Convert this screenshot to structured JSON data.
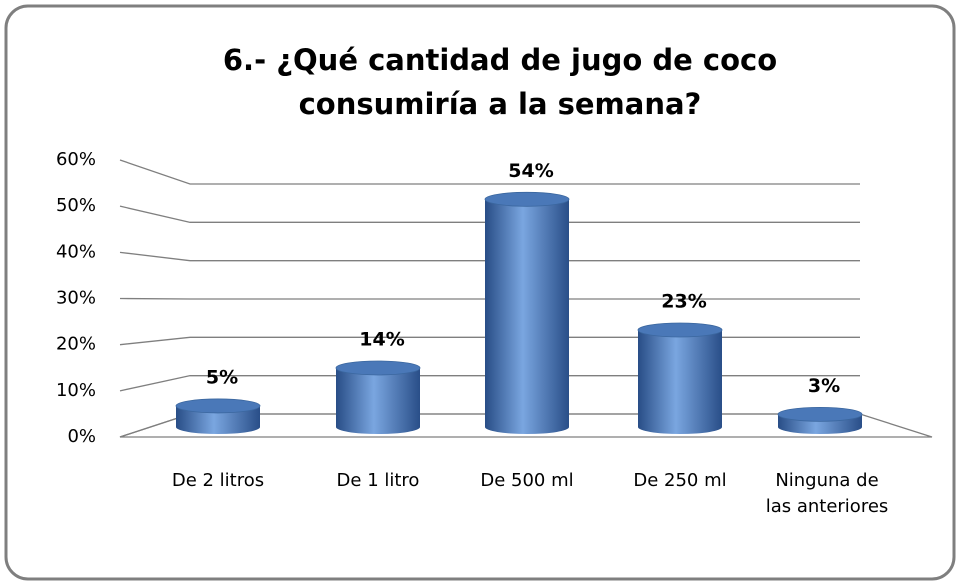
{
  "chart_data": {
    "type": "bar",
    "title": "6.- ¿Qué cantidad de jugo de coco consumiría  a la semana?",
    "categories": [
      "De 2 litros",
      "De 1 litro",
      "De 500 ml",
      "De 250 ml",
      "Ninguna de las anteriores"
    ],
    "values": [
      5,
      14,
      54,
      23,
      3
    ],
    "value_labels": [
      "5%",
      "14%",
      "54%",
      "23%",
      "3%"
    ],
    "color": "#4f81bd",
    "ylim": [
      0,
      60
    ],
    "yticks": [
      {
        "value": 0,
        "label": "0%"
      },
      {
        "value": 10,
        "label": "10%"
      },
      {
        "value": 20,
        "label": "20%"
      },
      {
        "value": 30,
        "label": "30%"
      },
      {
        "value": 40,
        "label": "40%"
      },
      {
        "value": 50,
        "label": "50%"
      },
      {
        "value": 60,
        "label": "60%"
      }
    ],
    "grid": true
  }
}
